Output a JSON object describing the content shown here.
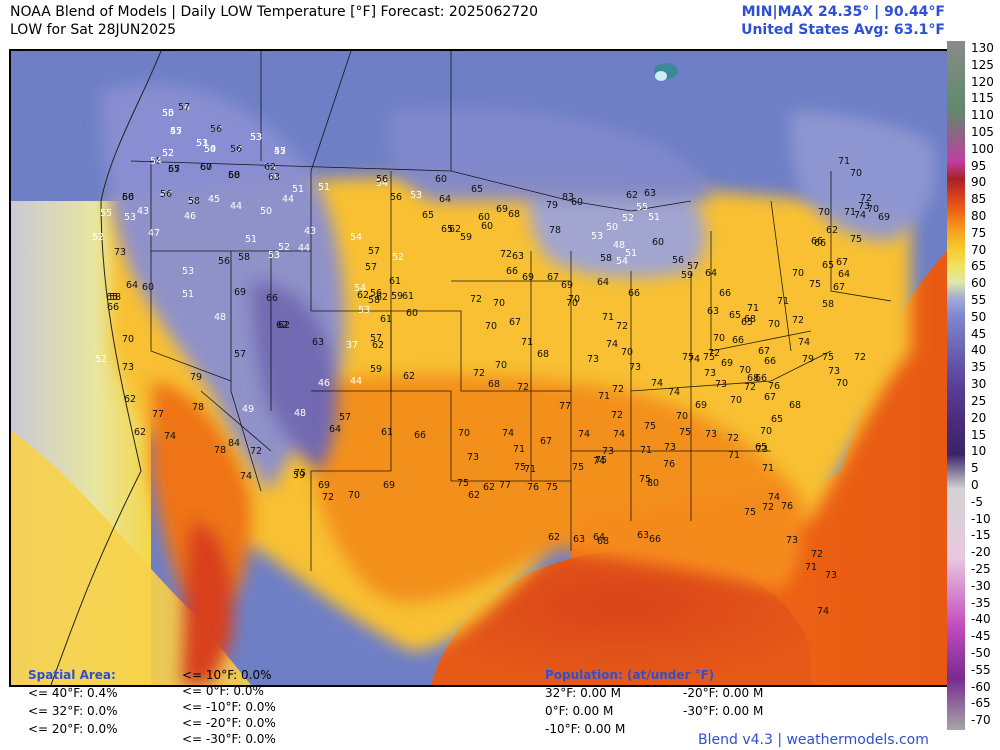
{
  "header": {
    "title": "NOAA Blend of Models | Daily LOW Temperature [°F] Forecast: 2025062720",
    "subtitle": "LOW for Sat 28JUN2025",
    "minmax": "MIN|MAX 24.35° | 90.44°F",
    "us_avg": "United States Avg: 63.1°F"
  },
  "colorbar": {
    "ticks": [
      "130",
      "125",
      "120",
      "115",
      "110",
      "105",
      "100",
      "95",
      "90",
      "85",
      "80",
      "75",
      "70",
      "65",
      "60",
      "55",
      "50",
      "45",
      "40",
      "35",
      "30",
      "25",
      "20",
      "15",
      "10",
      "5",
      "0",
      "-5",
      "-10",
      "-15",
      "-20",
      "-25",
      "-30",
      "-35",
      "-40",
      "-45",
      "-50",
      "-55",
      "-60",
      "-65",
      "-70"
    ],
    "colors": {
      "130": "#8a8a8a",
      "110": "#5f8a6a",
      "95": "#c03ea0",
      "90": "#a8202a",
      "85": "#d6401c",
      "80": "#ef6a14",
      "75": "#f6a020",
      "70": "#f8c82c",
      "65": "#f4e05a",
      "60": "#dfe8a6",
      "55": "#9fa8d6",
      "50": "#7f86d0",
      "40": "#6b62b2",
      "30": "#5a3f9a",
      "20": "#4a2d7a",
      "10": "#3a2468",
      "0": "#d3d3d3",
      "-20": "#e8c8e0",
      "-40": "#c24cbc",
      "-55": "#7a2a90",
      "-70": "#a6a6a6"
    }
  },
  "footer": {
    "spatial_title": "Spatial Area:",
    "spatial_col1": [
      "<= 40°F: 0.4%",
      "<= 32°F: 0.0%",
      "<= 20°F: 0.0%"
    ],
    "spatial_col2": [
      "<= 10°F: 0.0%",
      "<= 0°F: 0.0%",
      "<= -10°F: 0.0%",
      "<= -20°F: 0.0%",
      "<= -30°F: 0.0%"
    ],
    "population_title": "Population: (at/under °F)",
    "pop_col1": [
      "32°F: 0.00 M",
      "0°F: 0.00 M",
      "-10°F: 0.00 M"
    ],
    "pop_col2": [
      "-20°F: 0.00 M",
      "-30°F: 0.00 M"
    ],
    "credit": "Blend v4.3 | weathermodels.com"
  },
  "map": {
    "station_labels": [
      {
        "text": "54"
      },
      {
        "text": "50"
      },
      {
        "text": "50"
      },
      {
        "text": "53"
      },
      {
        "text": "55"
      },
      {
        "text": "52"
      },
      {
        "text": "53"
      },
      {
        "text": "54"
      },
      {
        "text": "52"
      },
      {
        "text": "47"
      },
      {
        "text": "58"
      },
      {
        "text": "57"
      },
      {
        "text": "60"
      },
      {
        "text": "58"
      },
      {
        "text": "53"
      },
      {
        "text": "49"
      },
      {
        "text": "56"
      },
      {
        "text": "48"
      },
      {
        "text": "49"
      },
      {
        "text": "45"
      },
      {
        "text": "44"
      },
      {
        "text": "51"
      },
      {
        "text": "51"
      },
      {
        "text": "44"
      },
      {
        "text": "50"
      },
      {
        "text": "55"
      },
      {
        "text": "43"
      },
      {
        "text": "46"
      },
      {
        "text": "53"
      },
      {
        "text": "47"
      },
      {
        "text": "52"
      },
      {
        "text": "51"
      },
      {
        "text": "43"
      },
      {
        "text": "54"
      },
      {
        "text": "52"
      },
      {
        "text": "44"
      },
      {
        "text": "53"
      },
      {
        "text": "58"
      },
      {
        "text": "53"
      },
      {
        "text": "73"
      },
      {
        "text": "56"
      },
      {
        "text": "65"
      },
      {
        "text": "64"
      },
      {
        "text": "60"
      },
      {
        "text": "58"
      },
      {
        "text": "51"
      },
      {
        "text": "69"
      },
      {
        "text": "66"
      },
      {
        "text": "66"
      },
      {
        "text": "48"
      },
      {
        "text": "62"
      },
      {
        "text": "70"
      },
      {
        "text": "57"
      },
      {
        "text": "52"
      },
      {
        "text": "73"
      },
      {
        "text": "62"
      },
      {
        "text": "79"
      },
      {
        "text": "77"
      },
      {
        "text": "78"
      },
      {
        "text": "49"
      },
      {
        "text": "48"
      },
      {
        "text": "62"
      },
      {
        "text": "74"
      },
      {
        "text": "84"
      },
      {
        "text": "78"
      },
      {
        "text": "72"
      },
      {
        "text": "75"
      },
      {
        "text": "74"
      },
      {
        "text": "59"
      },
      {
        "text": "69"
      },
      {
        "text": "72"
      },
      {
        "text": "70"
      },
      {
        "text": "69"
      },
      {
        "text": "62"
      },
      {
        "text": "63"
      },
      {
        "text": "37"
      },
      {
        "text": "57"
      },
      {
        "text": "62"
      },
      {
        "text": "59"
      },
      {
        "text": "62"
      },
      {
        "text": "46"
      },
      {
        "text": "44"
      },
      {
        "text": "57"
      },
      {
        "text": "64"
      },
      {
        "text": "61"
      },
      {
        "text": "66"
      },
      {
        "text": "57"
      },
      {
        "text": "57"
      },
      {
        "text": "61"
      },
      {
        "text": "59"
      },
      {
        "text": "61"
      },
      {
        "text": "60"
      },
      {
        "text": "62"
      },
      {
        "text": "61"
      },
      {
        "text": "58"
      },
      {
        "text": "62"
      },
      {
        "text": "53"
      },
      {
        "text": "56"
      },
      {
        "text": "54"
      },
      {
        "text": "52"
      },
      {
        "text": "54"
      },
      {
        "text": "56"
      },
      {
        "text": "56"
      },
      {
        "text": "53"
      },
      {
        "text": "60"
      },
      {
        "text": "65"
      },
      {
        "text": "65"
      },
      {
        "text": "60"
      },
      {
        "text": "59"
      },
      {
        "text": "63"
      },
      {
        "text": "66"
      },
      {
        "text": "69"
      },
      {
        "text": "70"
      },
      {
        "text": "72"
      },
      {
        "text": "70"
      },
      {
        "text": "68"
      },
      {
        "text": "67"
      },
      {
        "text": "71"
      },
      {
        "text": "70"
      },
      {
        "text": "72"
      },
      {
        "text": "68"
      },
      {
        "text": "72"
      },
      {
        "text": "70"
      },
      {
        "text": "74"
      },
      {
        "text": "71"
      },
      {
        "text": "77"
      },
      {
        "text": "74"
      },
      {
        "text": "72"
      },
      {
        "text": "74"
      },
      {
        "text": "73"
      },
      {
        "text": "75"
      },
      {
        "text": "75"
      },
      {
        "text": "73"
      },
      {
        "text": "76"
      },
      {
        "text": "75"
      },
      {
        "text": "73"
      },
      {
        "text": "71"
      },
      {
        "text": "67"
      },
      {
        "text": "71"
      },
      {
        "text": "73"
      },
      {
        "text": "75"
      },
      {
        "text": "77"
      },
      {
        "text": "75"
      },
      {
        "text": "76"
      },
      {
        "text": "75"
      },
      {
        "text": "74"
      },
      {
        "text": "80"
      },
      {
        "text": "75"
      },
      {
        "text": "75"
      },
      {
        "text": "62"
      },
      {
        "text": "62"
      },
      {
        "text": "62"
      },
      {
        "text": "63"
      },
      {
        "text": "64"
      },
      {
        "text": "66"
      },
      {
        "text": "68"
      },
      {
        "text": "63"
      },
      {
        "text": "64"
      },
      {
        "text": "65"
      },
      {
        "text": "62"
      },
      {
        "text": "60"
      },
      {
        "text": "69"
      },
      {
        "text": "68"
      },
      {
        "text": "72"
      },
      {
        "text": "67"
      },
      {
        "text": "69"
      },
      {
        "text": "70"
      },
      {
        "text": "71"
      },
      {
        "text": "70"
      },
      {
        "text": "72"
      },
      {
        "text": "74"
      },
      {
        "text": "70"
      },
      {
        "text": "73"
      },
      {
        "text": "73"
      },
      {
        "text": "74"
      },
      {
        "text": "75"
      },
      {
        "text": "74"
      },
      {
        "text": "72"
      },
      {
        "text": "71"
      },
      {
        "text": "70"
      },
      {
        "text": "69"
      },
      {
        "text": "70"
      },
      {
        "text": "72"
      },
      {
        "text": "73"
      },
      {
        "text": "76"
      },
      {
        "text": "72"
      },
      {
        "text": "71"
      },
      {
        "text": "73"
      },
      {
        "text": "71"
      },
      {
        "text": "74"
      },
      {
        "text": "72"
      },
      {
        "text": "75"
      },
      {
        "text": "76"
      },
      {
        "text": "73"
      },
      {
        "text": "72"
      },
      {
        "text": "71"
      },
      {
        "text": "73"
      },
      {
        "text": "74"
      },
      {
        "text": "78"
      },
      {
        "text": "79"
      },
      {
        "text": "83"
      },
      {
        "text": "60"
      },
      {
        "text": "62"
      },
      {
        "text": "63"
      },
      {
        "text": "55"
      },
      {
        "text": "51"
      },
      {
        "text": "52"
      },
      {
        "text": "50"
      },
      {
        "text": "53"
      },
      {
        "text": "48"
      },
      {
        "text": "51"
      },
      {
        "text": "54"
      },
      {
        "text": "58"
      },
      {
        "text": "64"
      },
      {
        "text": "66"
      },
      {
        "text": "60"
      },
      {
        "text": "56"
      },
      {
        "text": "59"
      },
      {
        "text": "57"
      },
      {
        "text": "64"
      },
      {
        "text": "63"
      },
      {
        "text": "66"
      },
      {
        "text": "65"
      },
      {
        "text": "68"
      },
      {
        "text": "71"
      },
      {
        "text": "70"
      },
      {
        "text": "72"
      },
      {
        "text": "75"
      },
      {
        "text": "74"
      },
      {
        "text": "73"
      },
      {
        "text": "69"
      },
      {
        "text": "66"
      },
      {
        "text": "67"
      },
      {
        "text": "65"
      },
      {
        "text": "70"
      },
      {
        "text": "71"
      },
      {
        "text": "72"
      },
      {
        "text": "74"
      },
      {
        "text": "79"
      },
      {
        "text": "75"
      },
      {
        "text": "73"
      },
      {
        "text": "70"
      },
      {
        "text": "72"
      },
      {
        "text": "70"
      },
      {
        "text": "68"
      },
      {
        "text": "66"
      },
      {
        "text": "66"
      },
      {
        "text": "67"
      },
      {
        "text": "65"
      },
      {
        "text": "68"
      },
      {
        "text": "70"
      },
      {
        "text": "65"
      },
      {
        "text": "67"
      },
      {
        "text": "64"
      },
      {
        "text": "62"
      },
      {
        "text": "66"
      },
      {
        "text": "70"
      },
      {
        "text": "71"
      },
      {
        "text": "75"
      },
      {
        "text": "74"
      },
      {
        "text": "73"
      },
      {
        "text": "72"
      },
      {
        "text": "70"
      },
      {
        "text": "69"
      },
      {
        "text": "71"
      },
      {
        "text": "70"
      },
      {
        "text": "66"
      },
      {
        "text": "65"
      },
      {
        "text": "67"
      },
      {
        "text": "70"
      },
      {
        "text": "75"
      },
      {
        "text": "58"
      },
      {
        "text": "57"
      },
      {
        "text": "55"
      },
      {
        "text": "56"
      },
      {
        "text": "53"
      },
      {
        "text": "47"
      },
      {
        "text": "52"
      },
      {
        "text": "51"
      },
      {
        "text": "50"
      },
      {
        "text": "56"
      },
      {
        "text": "55"
      },
      {
        "text": "54"
      },
      {
        "text": "65"
      },
      {
        "text": "67"
      },
      {
        "text": "60"
      },
      {
        "text": "62"
      },
      {
        "text": "63"
      },
      {
        "text": "60"
      },
      {
        "text": "56"
      },
      {
        "text": "58"
      }
    ]
  }
}
